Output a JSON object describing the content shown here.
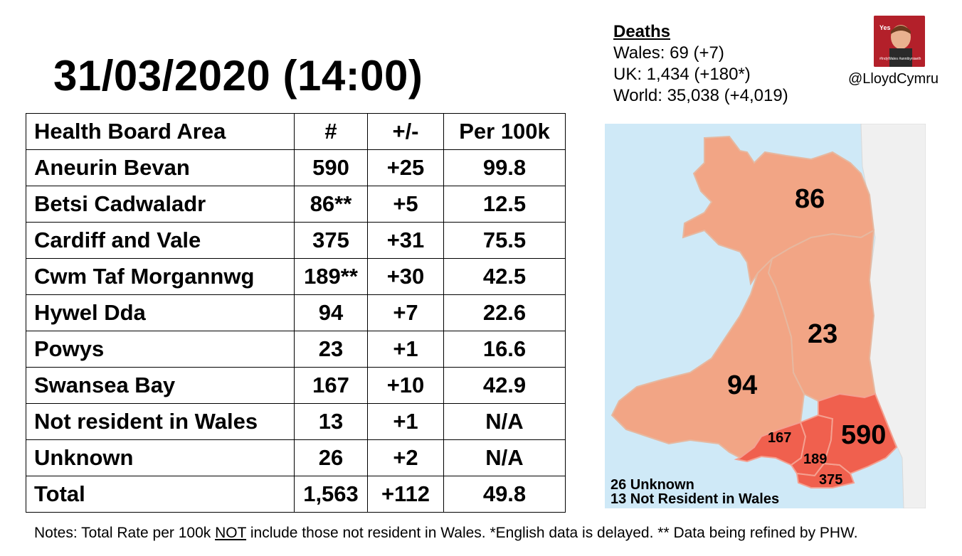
{
  "title": "31/03/2020 (14:00)",
  "deaths": {
    "heading": "Deaths",
    "wales": "Wales: 69 (+7)",
    "uk": "UK: 1,434 (+180*)",
    "world": "World: 35,038 (+4,019)"
  },
  "profile": {
    "handle": "@LloydCymru",
    "avatar_text_top": "Yes",
    "avatar_text_bottom": "#IndyWales #annibyniaeth"
  },
  "table": {
    "headers": [
      "Health Board Area",
      "#",
      "+/-",
      "Per 100k"
    ],
    "rows": [
      [
        "Aneurin Bevan",
        "590",
        "+25",
        "99.8"
      ],
      [
        "Betsi Cadwaladr",
        "86**",
        "+5",
        "12.5"
      ],
      [
        "Cardiff and Vale",
        "375",
        "+31",
        "75.5"
      ],
      [
        "Cwm Taf Morgannwg",
        "189**",
        "+30",
        "42.5"
      ],
      [
        "Hywel Dda",
        "94",
        "+7",
        "22.6"
      ],
      [
        "Powys",
        "23",
        "+1",
        "16.6"
      ],
      [
        "Swansea Bay",
        "167",
        "+10",
        "42.9"
      ],
      [
        "Not resident in Wales",
        "13",
        "+1",
        "N/A"
      ],
      [
        "Unknown",
        "26",
        "+2",
        "N/A"
      ],
      [
        "Total",
        "1,563",
        "+112",
        "49.8"
      ]
    ]
  },
  "map": {
    "labels": {
      "betsi": "86",
      "powys": "23",
      "hywel": "94",
      "aneurin": "590",
      "swansea": "167",
      "cwmtaf": "189",
      "cardiff": "375"
    },
    "legend": [
      "26 Unknown",
      "13 Not Resident in Wales"
    ],
    "colors": {
      "sea": "#cfe9f7",
      "land_other": "#f0f0f0",
      "low": "#f2a585",
      "high": "#f0604e",
      "border": "#e6b8a0"
    }
  },
  "notes": {
    "part1": "Notes: Total Rate per 100k ",
    "not": "NOT",
    "part2": " include those not resident in Wales. *English data is delayed. ** Data being refined by PHW."
  }
}
